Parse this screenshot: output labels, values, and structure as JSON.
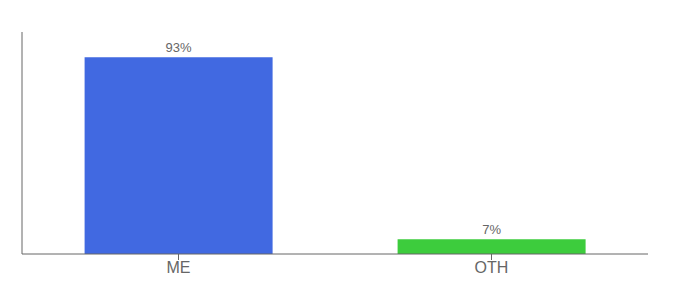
{
  "chart_data": {
    "type": "bar",
    "categories": [
      "ME",
      "OTH"
    ],
    "values": [
      93,
      7
    ],
    "value_labels": [
      "93%",
      "7%"
    ],
    "colors": [
      "#4169e1",
      "#3dcc3d"
    ],
    "ylim": [
      0,
      105
    ],
    "tick_labels": "x",
    "data_labels": true,
    "grid": false
  }
}
